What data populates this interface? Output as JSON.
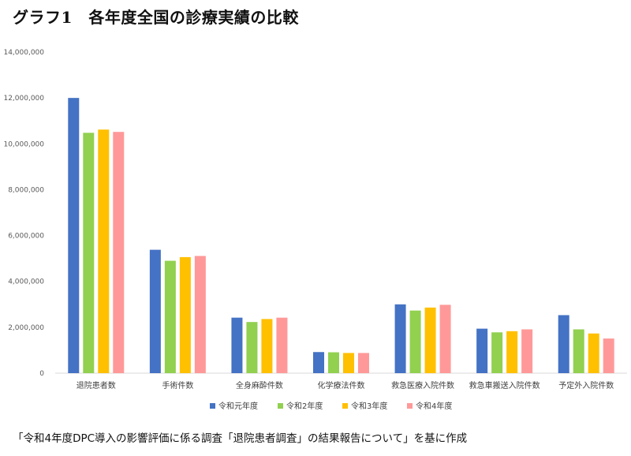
{
  "title": "グラフ1　各年度全国の診療実績の比較",
  "footnote": "「令和4年度DPC導入の影響評価に係る調査「退院患者調査」の結果報告について」を基に作成",
  "chart_data": {
    "type": "bar",
    "categories": [
      "退院患者数",
      "手術件数",
      "全身麻酔件数",
      "化学療法件数",
      "救急医療入院件数",
      "救急車搬送入院件数",
      "予定外入院件数"
    ],
    "series": [
      {
        "name": "令和元年度",
        "color": "#4472C4",
        "values": [
          12000000,
          5380000,
          2420000,
          920000,
          3000000,
          1940000,
          2530000
        ]
      },
      {
        "name": "令和2年度",
        "color": "#92D050",
        "values": [
          10480000,
          4900000,
          2230000,
          910000,
          2730000,
          1780000,
          1910000
        ]
      },
      {
        "name": "令和3年度",
        "color": "#FFC000",
        "values": [
          10620000,
          5060000,
          2360000,
          880000,
          2860000,
          1830000,
          1730000
        ]
      },
      {
        "name": "令和4年度",
        "color": "#FF9999",
        "values": [
          10520000,
          5110000,
          2420000,
          880000,
          2980000,
          1910000,
          1510000
        ]
      }
    ],
    "yticks": [
      0,
      2000000,
      4000000,
      6000000,
      8000000,
      10000000,
      12000000,
      14000000
    ],
    "ytick_labels": [
      "0",
      "2,000,000",
      "4,000,000",
      "6,000,000",
      "8,000,000",
      "10,000,000",
      "12,000,000",
      "14,000,000"
    ],
    "ylim": [
      0,
      14000000
    ],
    "grid": false,
    "legend_position": "bottom"
  }
}
